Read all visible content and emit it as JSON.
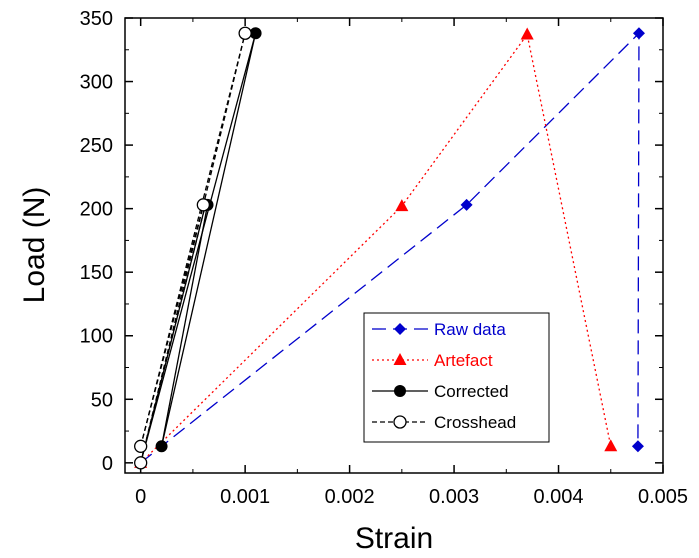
{
  "chart_data": {
    "type": "line",
    "xlabel": "Strain",
    "ylabel": "Load (N)",
    "xlim": [
      -0.00015,
      0.005
    ],
    "ylim": [
      -8,
      350
    ],
    "xticks": [
      0,
      0.001,
      0.002,
      0.003,
      0.004,
      0.005
    ],
    "xtick_labels": [
      "0",
      "0.001",
      "0.002",
      "0.003",
      "0.004",
      "0.005"
    ],
    "yticks": [
      0,
      50,
      100,
      150,
      200,
      250,
      300,
      350
    ],
    "ytick_labels": [
      "0",
      "50",
      "100",
      "150",
      "200",
      "250",
      "300",
      "350"
    ],
    "grid": false,
    "legend_position": "bottom-right",
    "series": [
      {
        "name": "Raw data",
        "color": "#0000cc",
        "marker": "diamond",
        "line": "long-dash",
        "points": [
          [
            0,
            0
          ],
          [
            0.00312,
            203
          ],
          [
            0.00477,
            338
          ],
          [
            0.00476,
            13
          ]
        ]
      },
      {
        "name": "Artefact",
        "color": "#ff0000",
        "marker": "triangle",
        "line": "dotted",
        "points": [
          [
            0,
            0
          ],
          [
            0.0025,
            202
          ],
          [
            0.0037,
            337
          ],
          [
            0.0045,
            13
          ]
        ]
      },
      {
        "name": "Corrected",
        "color": "#000000",
        "marker": "filled-circle",
        "line": "solid",
        "pairs": [
          [
            [
              0,
              0
            ],
            [
              0.0011,
              338
            ]
          ],
          [
            [
              0.0002,
              13
            ],
            [
              0.00064,
              203
            ]
          ],
          [
            [
              0.0002,
              13
            ],
            [
              0.0011,
              338
            ]
          ],
          [
            [
              0,
              0
            ],
            [
              0.00062,
              203
            ]
          ]
        ],
        "points": [
          [
            0,
            0
          ],
          [
            0.0002,
            13
          ],
          [
            0.00062,
            203
          ],
          [
            0.00064,
            203
          ],
          [
            0.0011,
            338
          ]
        ]
      },
      {
        "name": "Crosshead",
        "color": "#000000",
        "marker": "open-circle",
        "line": "dashed",
        "pairs": [
          [
            [
              0,
              0
            ],
            [
              0.001,
              338
            ]
          ],
          [
            [
              0,
              13
            ],
            [
              0.0006,
              203
            ]
          ],
          [
            [
              0,
              13
            ],
            [
              0.001,
              338
            ]
          ],
          [
            [
              0,
              0
            ],
            [
              0.00062,
              203
            ]
          ]
        ],
        "points": [
          [
            0,
            0
          ],
          [
            0,
            13
          ],
          [
            0.0006,
            203
          ],
          [
            0.001,
            338
          ]
        ]
      }
    ]
  }
}
